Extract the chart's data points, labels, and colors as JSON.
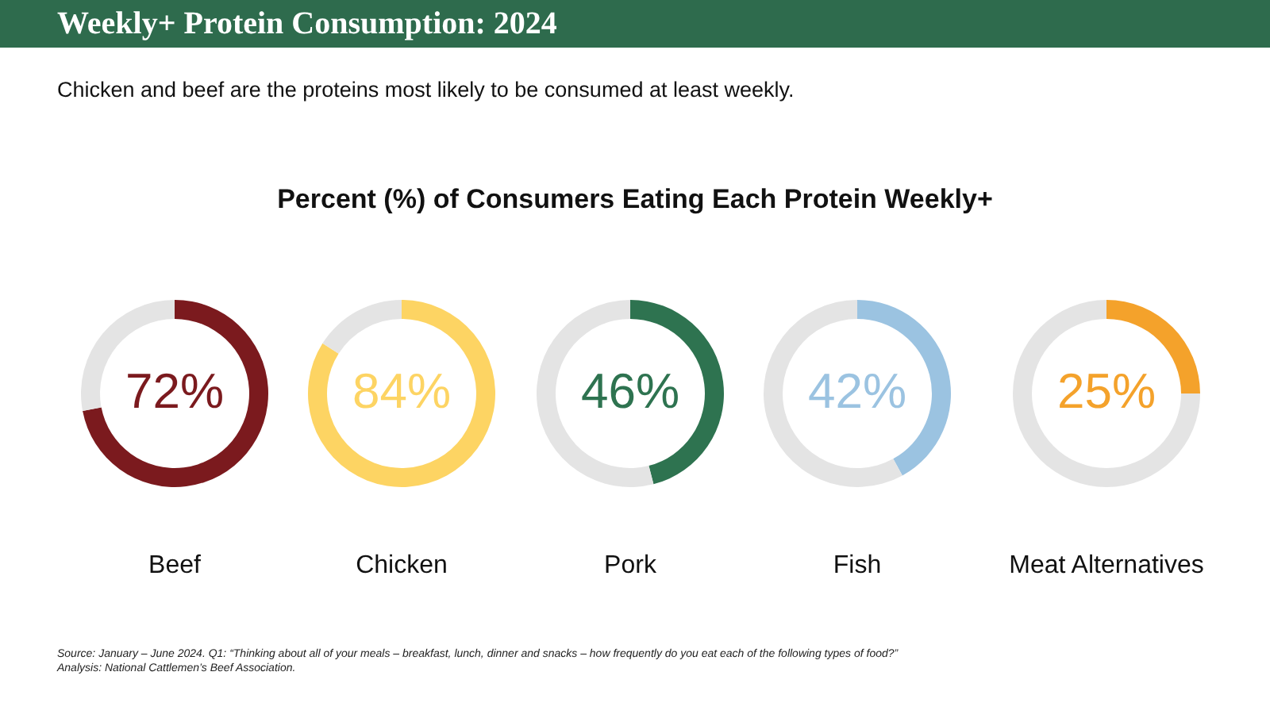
{
  "chart_data": [
    {
      "type": "other",
      "title": "Weekly+ Protein Consumption: 2024",
      "subtitle": "Chicken and beef are the proteins most likely to be consumed at least weekly.",
      "annotations": [
        "Percent (%) of Consumers Eating Each Protein Weekly+",
        "Source: January – June 2024. Q1: “Thinking about all of your meals – breakfast, lunch, dinner and snacks – how frequently do you eat each of the following types of food?”",
        "Analysis: National Cattlemen’s Beef Association."
      ]
    },
    {
      "type": "donut",
      "xlabel": "Beef",
      "categories": [
        null,
        null
      ],
      "values": [
        72,
        28
      ],
      "colors": [
        "#7b1a1e",
        "#e4e4e4"
      ],
      "value_labels": [
        "72%",
        null
      ]
    },
    {
      "type": "donut",
      "xlabel": "Chicken",
      "categories": [
        null,
        null
      ],
      "values": [
        84,
        16
      ],
      "colors": [
        "#fdd463",
        "#e4e4e4"
      ],
      "value_labels": [
        "84%",
        null
      ]
    },
    {
      "type": "donut",
      "xlabel": "Pork",
      "categories": [
        null,
        null
      ],
      "values": [
        46,
        54
      ],
      "colors": [
        "#2e7350",
        "#e4e4e4"
      ],
      "value_labels": [
        "46%",
        null
      ]
    },
    {
      "type": "donut",
      "xlabel": "Fish",
      "categories": [
        null,
        null
      ],
      "values": [
        42,
        58
      ],
      "colors": [
        "#9bc3e1",
        "#e4e4e4"
      ],
      "value_labels": [
        "42%",
        null
      ]
    },
    {
      "type": "donut",
      "xlabel": "Meat Alternatives",
      "categories": [
        null,
        null
      ],
      "values": [
        25,
        75
      ],
      "colors": [
        "#f4a22b",
        "#e4e4e4"
      ],
      "value_labels": [
        "25%",
        null
      ]
    }
  ]
}
